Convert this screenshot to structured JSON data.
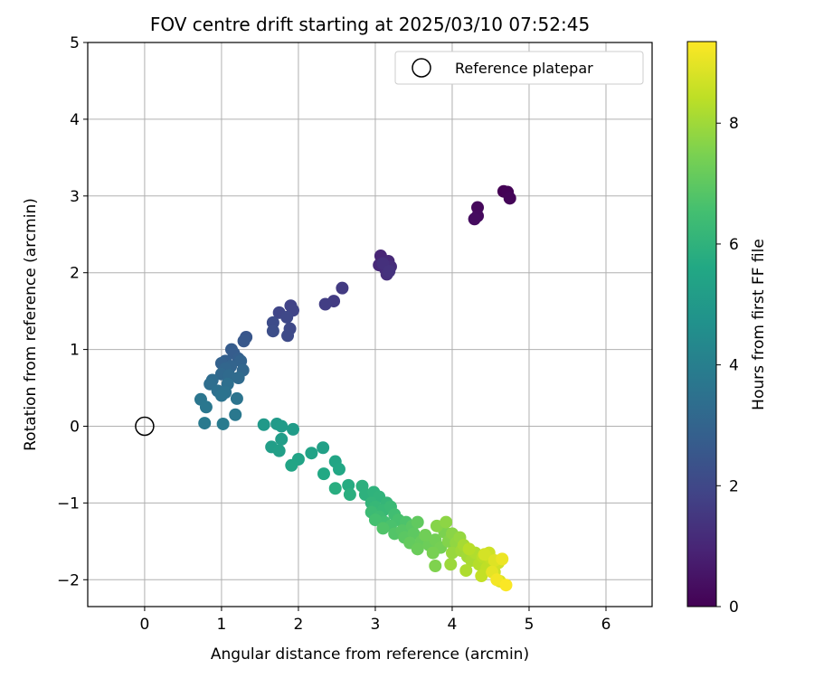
{
  "chart_data": {
    "type": "scatter",
    "title": "FOV centre drift starting at 2025/03/10 07:52:45",
    "xlabel": "Angular distance from reference (arcmin)",
    "ylabel": "Rotation from reference (arcmin)",
    "xlim": [
      -0.74,
      6.6
    ],
    "ylim": [
      -2.35,
      5.0
    ],
    "xticks": [
      0,
      1,
      2,
      3,
      4,
      5,
      6
    ],
    "yticks": [
      -2,
      -1,
      0,
      1,
      2,
      3,
      4,
      5
    ],
    "grid": true,
    "legend": {
      "placement": "top-right",
      "entries": [
        "Reference platepar"
      ]
    },
    "reference_point": {
      "x": 0,
      "y": 0,
      "label": "Reference platepar"
    },
    "colorbar": {
      "label": "Hours from first FF file",
      "colormap": "viridis",
      "range": [
        0,
        9.35
      ],
      "ticks": [
        0,
        2,
        4,
        6,
        8
      ]
    },
    "series": [
      {
        "values": [
          {
            "x": 4.67,
            "y": 3.06,
            "t": 0.0
          },
          {
            "x": 4.72,
            "y": 3.05,
            "t": 0.05
          },
          {
            "x": 4.75,
            "y": 2.97,
            "t": 0.1
          },
          {
            "x": 4.33,
            "y": 2.85,
            "t": 0.2
          },
          {
            "x": 4.33,
            "y": 2.74,
            "t": 0.25
          },
          {
            "x": 4.29,
            "y": 2.7,
            "t": 0.3
          },
          {
            "x": 3.07,
            "y": 2.22,
            "t": 1.0
          },
          {
            "x": 3.17,
            "y": 2.15,
            "t": 1.05
          },
          {
            "x": 3.05,
            "y": 2.1,
            "t": 1.1
          },
          {
            "x": 3.13,
            "y": 2.05,
            "t": 1.15
          },
          {
            "x": 3.2,
            "y": 2.08,
            "t": 1.2
          },
          {
            "x": 3.15,
            "y": 1.98,
            "t": 1.25
          },
          {
            "x": 3.1,
            "y": 2.12,
            "t": 1.3
          },
          {
            "x": 3.18,
            "y": 2.02,
            "t": 1.35
          },
          {
            "x": 2.57,
            "y": 1.8,
            "t": 1.6
          },
          {
            "x": 2.46,
            "y": 1.63,
            "t": 1.65
          },
          {
            "x": 2.35,
            "y": 1.59,
            "t": 1.7
          },
          {
            "x": 1.9,
            "y": 1.57,
            "t": 1.85
          },
          {
            "x": 1.93,
            "y": 1.51,
            "t": 1.9
          },
          {
            "x": 1.75,
            "y": 1.48,
            "t": 1.95
          },
          {
            "x": 1.85,
            "y": 1.42,
            "t": 2.0
          },
          {
            "x": 1.89,
            "y": 1.27,
            "t": 2.05
          },
          {
            "x": 1.86,
            "y": 1.18,
            "t": 2.1
          },
          {
            "x": 1.67,
            "y": 1.35,
            "t": 2.15
          },
          {
            "x": 1.67,
            "y": 1.24,
            "t": 2.2
          },
          {
            "x": 1.32,
            "y": 1.16,
            "t": 2.5
          },
          {
            "x": 1.29,
            "y": 1.11,
            "t": 2.55
          },
          {
            "x": 1.13,
            "y": 1.0,
            "t": 2.7
          },
          {
            "x": 1.16,
            "y": 0.95,
            "t": 2.75
          },
          {
            "x": 1.22,
            "y": 0.88,
            "t": 2.8
          },
          {
            "x": 1.05,
            "y": 0.85,
            "t": 2.85
          },
          {
            "x": 1.0,
            "y": 0.82,
            "t": 2.9
          },
          {
            "x": 1.25,
            "y": 0.85,
            "t": 2.95
          },
          {
            "x": 1.12,
            "y": 0.78,
            "t": 3.0
          },
          {
            "x": 1.05,
            "y": 0.75,
            "t": 3.05
          },
          {
            "x": 1.28,
            "y": 0.73,
            "t": 3.1
          },
          {
            "x": 1.0,
            "y": 0.68,
            "t": 3.15
          },
          {
            "x": 1.1,
            "y": 0.66,
            "t": 3.2
          },
          {
            "x": 1.22,
            "y": 0.63,
            "t": 3.25
          },
          {
            "x": 0.88,
            "y": 0.6,
            "t": 3.3
          },
          {
            "x": 0.85,
            "y": 0.55,
            "t": 3.35
          },
          {
            "x": 1.08,
            "y": 0.55,
            "t": 3.4
          },
          {
            "x": 0.95,
            "y": 0.46,
            "t": 3.45
          },
          {
            "x": 1.05,
            "y": 0.44,
            "t": 3.5
          },
          {
            "x": 1.0,
            "y": 0.4,
            "t": 3.55
          },
          {
            "x": 1.2,
            "y": 0.36,
            "t": 3.6
          },
          {
            "x": 0.73,
            "y": 0.35,
            "t": 3.65
          },
          {
            "x": 0.8,
            "y": 0.25,
            "t": 3.7
          },
          {
            "x": 1.18,
            "y": 0.15,
            "t": 3.75
          },
          {
            "x": 0.78,
            "y": 0.04,
            "t": 3.8
          },
          {
            "x": 1.02,
            "y": 0.03,
            "t": 3.85
          },
          {
            "x": 1.55,
            "y": 0.02,
            "t": 5.0
          },
          {
            "x": 1.72,
            "y": 0.03,
            "t": 5.05
          },
          {
            "x": 1.78,
            "y": 0.0,
            "t": 5.08
          },
          {
            "x": 1.93,
            "y": -0.04,
            "t": 5.1
          },
          {
            "x": 1.78,
            "y": -0.17,
            "t": 5.15
          },
          {
            "x": 1.65,
            "y": -0.27,
            "t": 5.2
          },
          {
            "x": 1.75,
            "y": -0.32,
            "t": 5.25
          },
          {
            "x": 2.32,
            "y": -0.28,
            "t": 5.3
          },
          {
            "x": 2.17,
            "y": -0.35,
            "t": 5.35
          },
          {
            "x": 2.0,
            "y": -0.43,
            "t": 5.4
          },
          {
            "x": 1.91,
            "y": -0.51,
            "t": 5.45
          },
          {
            "x": 2.48,
            "y": -0.46,
            "t": 5.5
          },
          {
            "x": 2.53,
            "y": -0.56,
            "t": 5.55
          },
          {
            "x": 2.33,
            "y": -0.62,
            "t": 5.6
          },
          {
            "x": 2.65,
            "y": -0.77,
            "t": 5.75
          },
          {
            "x": 2.48,
            "y": -0.81,
            "t": 5.8
          },
          {
            "x": 2.67,
            "y": -0.89,
            "t": 5.85
          },
          {
            "x": 2.83,
            "y": -0.78,
            "t": 5.9
          },
          {
            "x": 2.87,
            "y": -0.89,
            "t": 5.95
          },
          {
            "x": 2.98,
            "y": -0.86,
            "t": 6.0
          },
          {
            "x": 3.05,
            "y": -0.92,
            "t": 6.05
          },
          {
            "x": 2.95,
            "y": -1.0,
            "t": 6.1
          },
          {
            "x": 3.15,
            "y": -1.0,
            "t": 6.15
          },
          {
            "x": 3.0,
            "y": -1.05,
            "t": 6.2
          },
          {
            "x": 3.1,
            "y": -1.1,
            "t": 6.25
          },
          {
            "x": 3.2,
            "y": -1.05,
            "t": 6.3
          },
          {
            "x": 2.95,
            "y": -1.12,
            "t": 6.35
          },
          {
            "x": 3.05,
            "y": -1.18,
            "t": 6.4
          },
          {
            "x": 3.25,
            "y": -1.15,
            "t": 6.45
          },
          {
            "x": 3.12,
            "y": -1.25,
            "t": 6.5
          },
          {
            "x": 3.0,
            "y": -1.22,
            "t": 6.55
          },
          {
            "x": 3.3,
            "y": -1.22,
            "t": 6.6
          },
          {
            "x": 3.2,
            "y": -1.3,
            "t": 6.65
          },
          {
            "x": 3.4,
            "y": -1.25,
            "t": 6.7
          },
          {
            "x": 3.1,
            "y": -1.33,
            "t": 6.75
          },
          {
            "x": 3.25,
            "y": -1.4,
            "t": 6.8
          },
          {
            "x": 3.35,
            "y": -1.36,
            "t": 6.85
          },
          {
            "x": 3.48,
            "y": -1.3,
            "t": 6.9
          },
          {
            "x": 3.38,
            "y": -1.45,
            "t": 6.95
          },
          {
            "x": 3.5,
            "y": -1.4,
            "t": 7.0
          },
          {
            "x": 3.55,
            "y": -1.25,
            "t": 7.05
          },
          {
            "x": 3.45,
            "y": -1.52,
            "t": 7.1
          },
          {
            "x": 3.6,
            "y": -1.5,
            "t": 7.15
          },
          {
            "x": 3.55,
            "y": -1.6,
            "t": 7.2
          },
          {
            "x": 3.7,
            "y": -1.55,
            "t": 7.25
          },
          {
            "x": 3.65,
            "y": -1.42,
            "t": 7.3
          },
          {
            "x": 3.78,
            "y": -1.48,
            "t": 7.35
          },
          {
            "x": 3.85,
            "y": -1.58,
            "t": 7.4
          },
          {
            "x": 3.75,
            "y": -1.65,
            "t": 7.45
          },
          {
            "x": 3.9,
            "y": -1.38,
            "t": 7.5
          },
          {
            "x": 3.78,
            "y": -1.82,
            "t": 7.55
          },
          {
            "x": 3.95,
            "y": -1.5,
            "t": 7.6
          },
          {
            "x": 3.8,
            "y": -1.3,
            "t": 7.65
          },
          {
            "x": 4.0,
            "y": -1.4,
            "t": 7.7
          },
          {
            "x": 3.92,
            "y": -1.25,
            "t": 7.75
          },
          {
            "x": 4.05,
            "y": -1.52,
            "t": 7.8
          },
          {
            "x": 4.1,
            "y": -1.45,
            "t": 7.85
          },
          {
            "x": 4.0,
            "y": -1.65,
            "t": 7.9
          },
          {
            "x": 3.98,
            "y": -1.8,
            "t": 7.95
          },
          {
            "x": 4.12,
            "y": -1.62,
            "t": 8.0
          },
          {
            "x": 4.2,
            "y": -1.7,
            "t": 8.05
          },
          {
            "x": 4.15,
            "y": -1.55,
            "t": 8.1
          },
          {
            "x": 4.25,
            "y": -1.75,
            "t": 8.15
          },
          {
            "x": 4.18,
            "y": -1.88,
            "t": 8.2
          },
          {
            "x": 4.3,
            "y": -1.65,
            "t": 8.25
          },
          {
            "x": 4.35,
            "y": -1.8,
            "t": 8.3
          },
          {
            "x": 4.22,
            "y": -1.6,
            "t": 8.35
          },
          {
            "x": 4.4,
            "y": -1.7,
            "t": 8.4
          },
          {
            "x": 4.45,
            "y": -1.85,
            "t": 8.45
          },
          {
            "x": 4.38,
            "y": -1.95,
            "t": 8.5
          },
          {
            "x": 4.5,
            "y": -1.72,
            "t": 8.55
          },
          {
            "x": 4.55,
            "y": -1.9,
            "t": 8.6
          },
          {
            "x": 4.48,
            "y": -1.65,
            "t": 8.65
          },
          {
            "x": 4.6,
            "y": -1.78,
            "t": 8.7
          },
          {
            "x": 4.42,
            "y": -1.67,
            "t": 8.75
          },
          {
            "x": 4.62,
            "y": -2.02,
            "t": 8.85
          },
          {
            "x": 4.55,
            "y": -1.75,
            "t": 8.9
          },
          {
            "x": 4.52,
            "y": -1.9,
            "t": 9.0
          },
          {
            "x": 4.65,
            "y": -1.73,
            "t": 9.1
          },
          {
            "x": 4.58,
            "y": -2.0,
            "t": 9.2
          },
          {
            "x": 4.7,
            "y": -2.07,
            "t": 9.3
          }
        ]
      }
    ]
  }
}
